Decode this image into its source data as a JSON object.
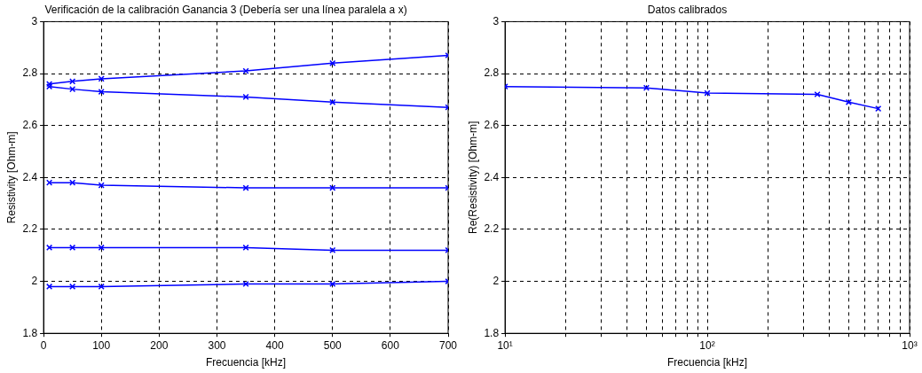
{
  "chart_data": [
    {
      "type": "line",
      "title": "Verificación de la calibración Ganancia 3 (Debería ser una línea paralela a x)",
      "xlabel": "Frecuencia [kHz]",
      "ylabel": "Resistivity [Ohm-m]",
      "x": [
        10,
        50,
        100,
        350,
        500,
        700
      ],
      "series": [
        {
          "color": "#0000ff",
          "values": [
            2.76,
            2.77,
            2.78,
            2.81,
            2.84,
            2.87
          ]
        },
        {
          "color": "#0000ff",
          "values": [
            2.75,
            2.74,
            2.73,
            2.71,
            2.69,
            2.67
          ]
        },
        {
          "color": "#0000ff",
          "values": [
            2.38,
            2.38,
            2.37,
            2.36,
            2.36,
            2.36
          ]
        },
        {
          "color": "#0000ff",
          "values": [
            2.13,
            2.13,
            2.13,
            2.13,
            2.12,
            2.12
          ]
        },
        {
          "color": "#0000ff",
          "values": [
            1.98,
            1.98,
            1.98,
            1.99,
            1.99,
            2.0
          ]
        }
      ],
      "xlim": [
        0,
        700
      ],
      "xticks": [
        0,
        100,
        200,
        300,
        400,
        500,
        600,
        700
      ],
      "ylim": [
        1.8,
        3
      ],
      "yticks": [
        1.8,
        2,
        2.2,
        2.4,
        2.6,
        2.8,
        3
      ],
      "grid": true,
      "marker": "cross",
      "line_style": "solid"
    },
    {
      "type": "line",
      "title": "Datos calibrados",
      "xlabel": "Frecuencia [kHz]",
      "ylabel": "Re(Resistivity) [Ohm-m]",
      "x": [
        10,
        50,
        100,
        350,
        500,
        700
      ],
      "series": [
        {
          "color": "#0000ff",
          "values": [
            2.75,
            2.745,
            2.725,
            2.72,
            2.69,
            2.665
          ]
        }
      ],
      "log": "x",
      "xlim": [
        10,
        1000
      ],
      "xticks": [
        {
          "value": 10,
          "label": "10¹"
        },
        {
          "value": 20,
          "label": null
        },
        {
          "value": 30,
          "label": null
        },
        {
          "value": 40,
          "label": null
        },
        {
          "value": 50,
          "label": null
        },
        {
          "value": 60,
          "label": null
        },
        {
          "value": 70,
          "label": null
        },
        {
          "value": 80,
          "label": null
        },
        {
          "value": 90,
          "label": null
        },
        {
          "value": 100,
          "label": "10²"
        },
        {
          "value": 200,
          "label": null
        },
        {
          "value": 300,
          "label": null
        },
        {
          "value": 400,
          "label": null
        },
        {
          "value": 500,
          "label": null
        },
        {
          "value": 600,
          "label": null
        },
        {
          "value": 700,
          "label": null
        },
        {
          "value": 800,
          "label": null
        },
        {
          "value": 900,
          "label": null
        },
        {
          "value": 1000,
          "label": "10³"
        }
      ],
      "ylim": [
        1.8,
        3
      ],
      "yticks": [
        1.8,
        2,
        2.2,
        2.4,
        2.6,
        2.8,
        3
      ],
      "grid": true,
      "marker": "cross",
      "line_style": "solid"
    }
  ]
}
